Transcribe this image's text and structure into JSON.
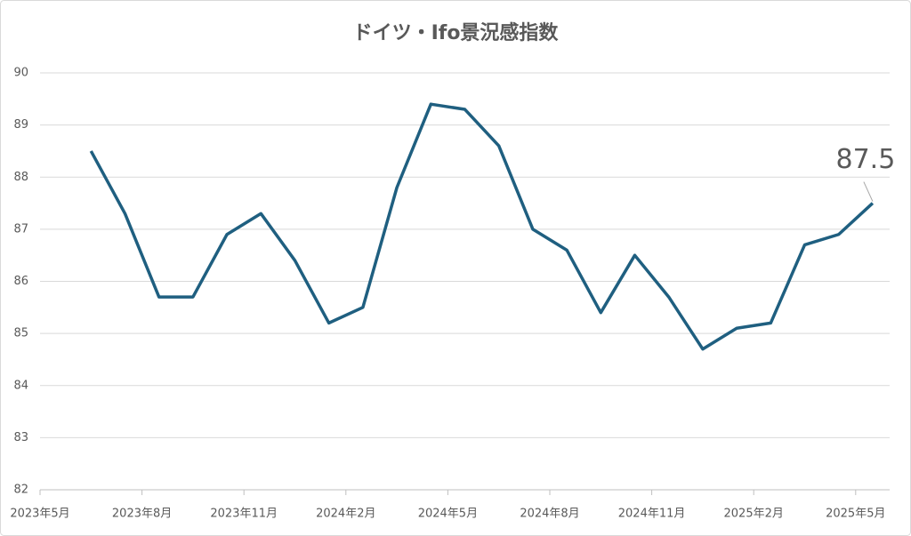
{
  "chart_data": {
    "type": "line",
    "title": "ドイツ・Ifo景況感指数",
    "x": [
      1.5,
      2.5,
      3.5,
      4.5,
      5.5,
      6.5,
      7.5,
      8.5,
      9.5,
      10.5,
      11.5,
      12.5,
      13.5,
      14.5,
      15.5,
      16.5,
      17.5,
      18.5,
      19.5,
      20.5,
      21.5,
      22.5,
      23.5,
      24.5
    ],
    "values": [
      88.5,
      87.3,
      85.7,
      85.7,
      86.9,
      87.3,
      86.4,
      85.2,
      85.5,
      87.8,
      89.4,
      89.3,
      88.6,
      87.0,
      86.6,
      85.4,
      86.5,
      85.7,
      84.7,
      85.1,
      85.2,
      86.7,
      86.9,
      87.5
    ],
    "value_labels": [
      null,
      null,
      null,
      null,
      null,
      null,
      null,
      null,
      null,
      null,
      null,
      null,
      null,
      null,
      null,
      null,
      null,
      null,
      null,
      null,
      null,
      null,
      null,
      "87.5"
    ],
    "color": "#1f5f80",
    "xlim": [
      0,
      25
    ],
    "xticks": [
      {
        "value": 0,
        "label": "2023年5月"
      },
      {
        "value": 3,
        "label": "2023年8月"
      },
      {
        "value": 6,
        "label": "2023年11月"
      },
      {
        "value": 9,
        "label": "2024年2月"
      },
      {
        "value": 12,
        "label": "2024年5月"
      },
      {
        "value": 15,
        "label": "2024年8月"
      },
      {
        "value": 18,
        "label": "2024年11月"
      },
      {
        "value": 21,
        "label": "2025年2月"
      },
      {
        "value": 24,
        "label": "2025年5月"
      }
    ],
    "ylim": [
      82,
      90
    ],
    "yticks": [
      82,
      83,
      84,
      85,
      86,
      87,
      88,
      89,
      90
    ],
    "grid": true
  }
}
